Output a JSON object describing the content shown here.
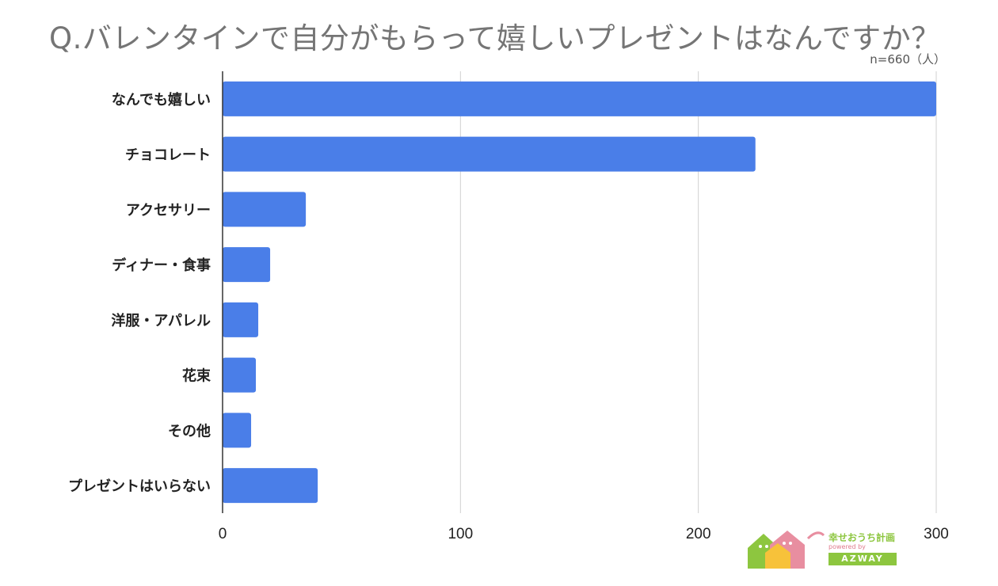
{
  "title": "Q.バレンタインで自分がもらって嬉しいプレゼントはなんですか？",
  "sample_note": "n=660（人）",
  "logo": {
    "brand": "幸せおうち計画",
    "powered": "powered by",
    "name": "AZWAY"
  },
  "colors": {
    "bar": "#4a7ee8",
    "grid": "#d0d0d0",
    "axis": "#333333"
  },
  "chart_data": {
    "type": "bar",
    "orientation": "horizontal",
    "categories": [
      "なんでも嬉しい",
      "チョコレート",
      "アクセサリー",
      "ディナー・食事",
      "洋服・アパレル",
      "花束",
      "その他",
      "プレゼントはいらない"
    ],
    "values": [
      300,
      224,
      35,
      20,
      15,
      14,
      12,
      40
    ],
    "xlim": [
      0,
      300
    ],
    "xticks": [
      "0",
      "100",
      "200",
      "300"
    ],
    "grid": true
  }
}
